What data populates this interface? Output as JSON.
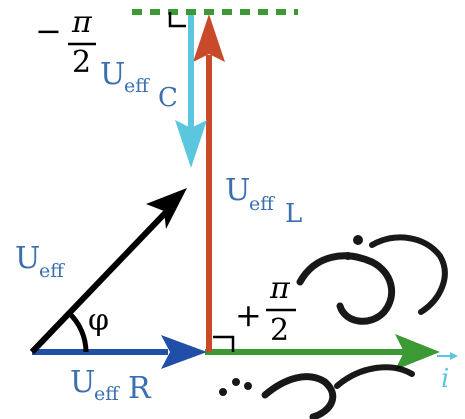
{
  "labels": {
    "u_eff": "U",
    "u_eff_sub": "eff",
    "u_eff_c": "U",
    "u_eff_c_sub": "eff",
    "u_eff_c_subsub": "C",
    "u_eff_l": "U",
    "u_eff_l_sub": "eff",
    "u_eff_l_subsub": "L",
    "u_eff_r": "U",
    "u_eff_r_sub": "eff",
    "u_eff_r_subsub": "R",
    "phi": "φ",
    "minus_pi_over_2": {
      "sign": "−",
      "numerator": "π",
      "denominator": "2"
    },
    "plus_pi_over_2": {
      "sign": "+",
      "numerator": "π",
      "denominator": "2"
    },
    "current_axis": "i"
  },
  "colors": {
    "resistor": "#1f4fa6",
    "inductor": "#c84a2a",
    "capacitor": "#5bc7df",
    "total": "#000000",
    "axis": "#3c9a34",
    "label_blue": "#3a6fb0",
    "watermark": "#000000"
  },
  "icons": {
    "right_angle_mark": "right-angle-icon",
    "watermark": "watermark-glyph"
  }
}
